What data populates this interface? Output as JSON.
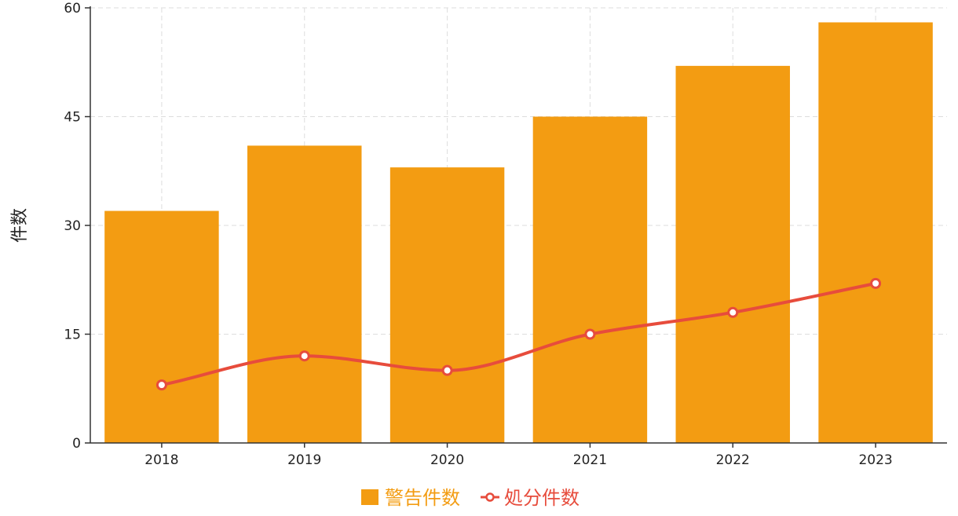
{
  "chart_data": {
    "type": "bar",
    "categories": [
      "2018",
      "2019",
      "2020",
      "2021",
      "2022",
      "2023"
    ],
    "series": [
      {
        "name": "警告件数",
        "type": "bar",
        "color": "#F39C12",
        "values": [
          32,
          41,
          38,
          45,
          52,
          58
        ]
      },
      {
        "name": "処分件数",
        "type": "line",
        "smooth": true,
        "color": "#E74C3C",
        "values": [
          8,
          12,
          10,
          15,
          18,
          22
        ]
      }
    ],
    "title": "",
    "xlabel": "",
    "ylabel": "件数",
    "ylim": [
      0,
      60
    ],
    "yticks": [
      0,
      15,
      30,
      45,
      60
    ],
    "grid": true,
    "legend_position": "bottom-center"
  }
}
